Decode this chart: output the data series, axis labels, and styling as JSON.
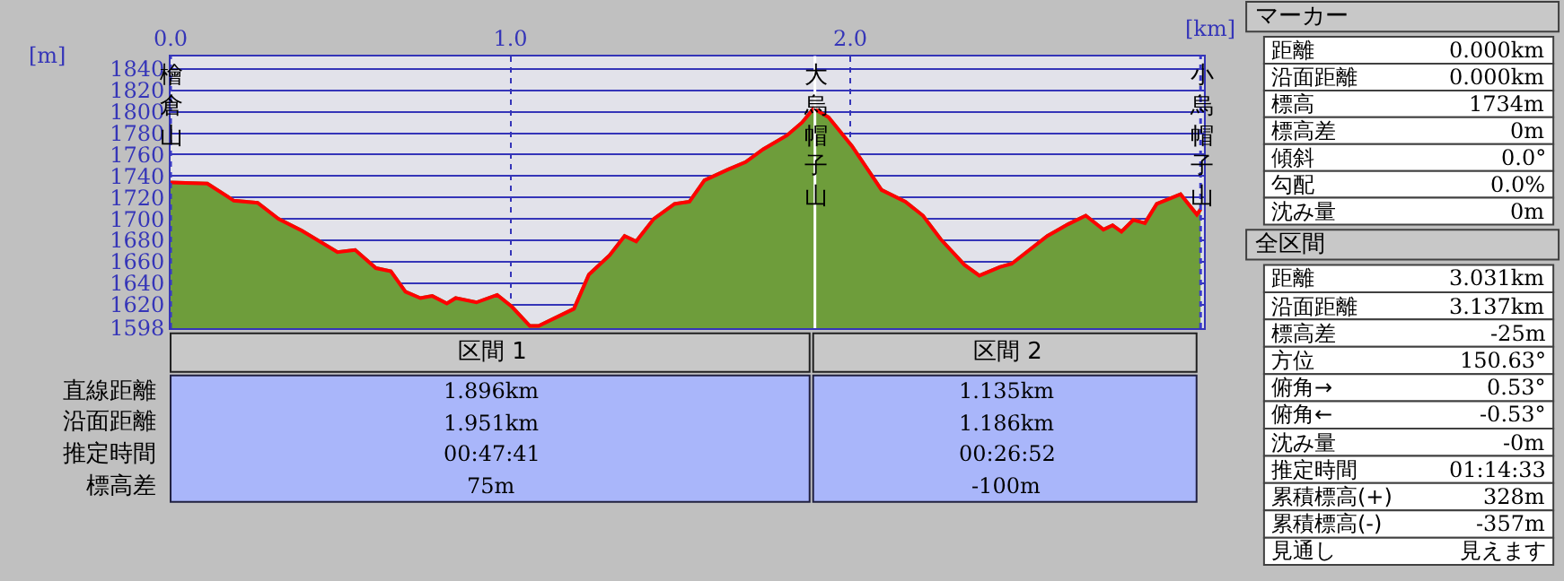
{
  "chart_data": [
    {
      "type": "area",
      "xlabel": "[km]",
      "ylabel": "[m]",
      "x": [
        0,
        0.108,
        0.186,
        0.256,
        0.317,
        0.386,
        0.491,
        0.543,
        0.604,
        0.648,
        0.691,
        0.735,
        0.77,
        0.813,
        0.839,
        0.9,
        0.961,
        1.004,
        1.057,
        1.083,
        1.187,
        1.231,
        1.292,
        1.336,
        1.37,
        1.422,
        1.483,
        1.527,
        1.571,
        1.64,
        1.692,
        1.744,
        1.814,
        1.858,
        1.892,
        1.936,
        2.005,
        2.092,
        2.162,
        2.214,
        2.266,
        2.336,
        2.38,
        2.44,
        2.475,
        2.58,
        2.641,
        2.693,
        2.745,
        2.772,
        2.798,
        2.833,
        2.867,
        2.902,
        2.972,
        3.02,
        3.031
      ],
      "series": [
        {
          "color": "#6e9d3b",
          "values": [
            1734,
            1733,
            1717,
            1715,
            1700,
            1689,
            1669,
            1671,
            1654,
            1651,
            1632,
            1626,
            1628,
            1621,
            1626,
            1622,
            1629,
            1618,
            1600,
            1600,
            1616,
            1648,
            1666,
            1684,
            1679,
            1700,
            1714,
            1716,
            1736,
            1746,
            1753,
            1765,
            1778,
            1790,
            1803,
            1795,
            1768,
            1727,
            1716,
            1703,
            1681,
            1657,
            1647,
            1655,
            1658,
            1684,
            1695,
            1703,
            1690,
            1694,
            1688,
            1699,
            1696,
            1714,
            1723,
            1704,
            1709
          ]
        },
        {
          "type": "line",
          "color": "#ff0000",
          "values": [
            1734,
            1733,
            1717,
            1715,
            1700,
            1689,
            1669,
            1671,
            1654,
            1651,
            1632,
            1626,
            1628,
            1621,
            1626,
            1622,
            1629,
            1618,
            1600,
            1600,
            1616,
            1648,
            1666,
            1684,
            1679,
            1700,
            1714,
            1716,
            1736,
            1746,
            1753,
            1765,
            1778,
            1790,
            1803,
            1795,
            1768,
            1727,
            1716,
            1703,
            1681,
            1657,
            1647,
            1655,
            1658,
            1684,
            1695,
            1703,
            1690,
            1694,
            1688,
            1699,
            1696,
            1714,
            1723,
            1704,
            1709
          ]
        }
      ],
      "xlim": [
        0,
        3.04
      ],
      "ylim": [
        1598,
        1852
      ],
      "xticks": [
        {
          "value": 0,
          "label": "0.0"
        },
        {
          "value": 1,
          "label": "1.0"
        },
        {
          "value": 2,
          "label": "2.0"
        }
      ],
      "yticks": [
        1598,
        1620,
        1640,
        1660,
        1680,
        1700,
        1720,
        1740,
        1760,
        1780,
        1800,
        1820,
        1840
      ],
      "grid": true,
      "ref_lines": [
        {
          "axis": "x",
          "value": 0,
          "label": "檜倉山",
          "color": "#3a3ac8",
          "line_style": "dotted"
        },
        {
          "axis": "x",
          "value": 1.896,
          "label": "大烏帽子山",
          "color": "#ffffff",
          "line_style": "solid"
        },
        {
          "axis": "x",
          "value": 3.031,
          "label": "小烏帽子山",
          "color": "#3a3ac8",
          "line_style": "dotted"
        }
      ]
    },
    {
      "type": "other",
      "categories": [
        "区間 1",
        "区間 2"
      ],
      "y_categories": [
        "直線距離",
        "沿面距離",
        "推定時間",
        "標高差"
      ],
      "cell_labels": [
        [
          "1.896km",
          "1.135km"
        ],
        [
          "1.951km",
          "1.186km"
        ],
        [
          "00:47:41",
          "00:26:52"
        ],
        [
          "75m",
          "-100m"
        ]
      ]
    },
    {
      "type": "other",
      "title": "マーカー",
      "y_categories": [
        "距離",
        "沿面距離",
        "標高",
        "標高差",
        "傾斜",
        "勾配",
        "沈み量"
      ],
      "cell_labels": [
        [
          "0.000km"
        ],
        [
          "0.000km"
        ],
        [
          "1734m"
        ],
        [
          "0m"
        ],
        [
          "0.0°"
        ],
        [
          "0.0%"
        ],
        [
          "0m"
        ]
      ]
    },
    {
      "type": "other",
      "title": "全区間",
      "y_categories": [
        "距離",
        "沿面距離",
        "標高差",
        "方位",
        "俯角→",
        "俯角←",
        "沈み量",
        "推定時間",
        "累積標高(+)",
        "累積標高(-)",
        "見通し"
      ],
      "cell_labels": [
        [
          "3.031km"
        ],
        [
          "3.137km"
        ],
        [
          "-25m"
        ],
        [
          "150.63°"
        ],
        [
          "0.53°"
        ],
        [
          "-0.53°"
        ],
        [
          "-0m"
        ],
        [
          "01:14:33"
        ],
        [
          "328m"
        ],
        [
          "-357m"
        ],
        [
          "見えます"
        ]
      ]
    }
  ]
}
